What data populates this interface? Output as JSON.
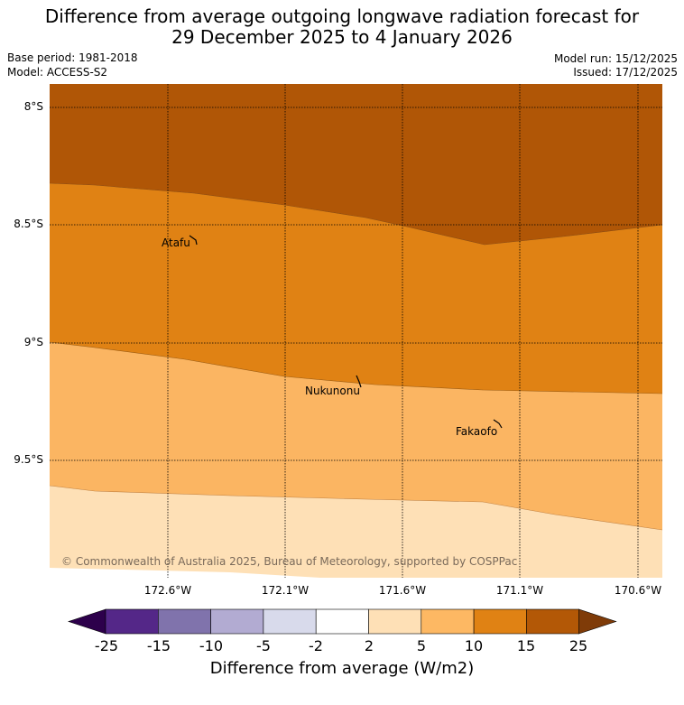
{
  "header": {
    "title_line1": "Difference from average outgoing longwave radiation forecast for",
    "title_line2": "29 December 2025 to 4 January 2026",
    "base_period": "Base period: 1981-2018",
    "model": "Model: ACCESS-S2",
    "model_run": "Model run: 15/12/2025",
    "issued": "Issued: 17/12/2025"
  },
  "map": {
    "lat_labels": [
      "8°S",
      "8.5°S",
      "9°S",
      "9.5°S"
    ],
    "lon_labels": [
      "172.6°W",
      "172.1°W",
      "171.6°W",
      "171.1°W",
      "170.6°W"
    ],
    "places": [
      "Atafu",
      "Nukunonu",
      "Fakaofo"
    ],
    "copyright": "© Commonwealth of Australia 2025, Bureau of Meteorology, supported by COSPPac",
    "region_colors": {
      "band_15_25": "#b05606",
      "band_10_15": "#e08214",
      "band_5_10": "#fbb562",
      "band_2_5": "#fee0b6"
    }
  },
  "colorbar": {
    "title": "Difference from average (W/m2)",
    "tick_labels": [
      "-25",
      "-15",
      "-10",
      "-5",
      "-2",
      "2",
      "5",
      "10",
      "15",
      "25"
    ],
    "colors": [
      "#542788",
      "#8073ac",
      "#b2abd2",
      "#d8daeb",
      "#ffffff",
      "#fee0b6",
      "#fdb863",
      "#e08214",
      "#b35806"
    ],
    "extend_low_color": "#2d004b",
    "extend_high_color": "#7f3b08"
  }
}
